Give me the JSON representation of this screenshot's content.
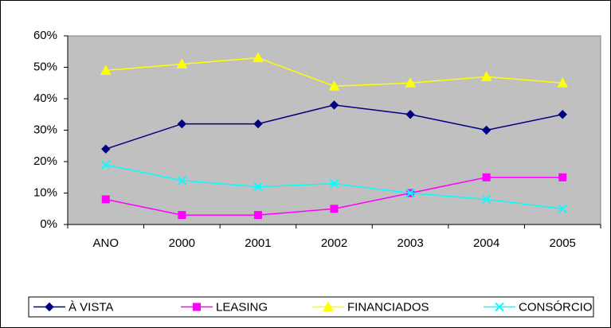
{
  "chart_data": {
    "type": "line",
    "categories": [
      "ANO",
      "2000",
      "2001",
      "2002",
      "2003",
      "2004",
      "2005"
    ],
    "series": [
      {
        "name": "À VISTA",
        "color": "#000080",
        "marker": "diamond",
        "values": [
          24,
          32,
          32,
          38,
          35,
          30,
          35
        ]
      },
      {
        "name": "LEASING",
        "color": "#ff00ff",
        "marker": "square",
        "values": [
          8,
          3,
          3,
          5,
          10,
          15,
          15
        ]
      },
      {
        "name": "FINANCIADOS",
        "color": "#ffff00",
        "marker": "triangle",
        "values": [
          49,
          51,
          53,
          44,
          45,
          47,
          45
        ]
      },
      {
        "name": "CONSÓRCIO",
        "color": "#00ffff",
        "marker": "x",
        "values": [
          19,
          14,
          12,
          13,
          10,
          8,
          5
        ]
      }
    ],
    "ylim": [
      0,
      60
    ],
    "yticks": [
      {
        "value": 0,
        "label": "0%"
      },
      {
        "value": 10,
        "label": "10%"
      },
      {
        "value": 20,
        "label": "20%"
      },
      {
        "value": 30,
        "label": "30%"
      },
      {
        "value": 40,
        "label": "40%"
      },
      {
        "value": 50,
        "label": "50%"
      },
      {
        "value": 60,
        "label": "60%"
      }
    ],
    "grid": false,
    "legend": "bottom",
    "plot_background": "#c0c0c0"
  }
}
